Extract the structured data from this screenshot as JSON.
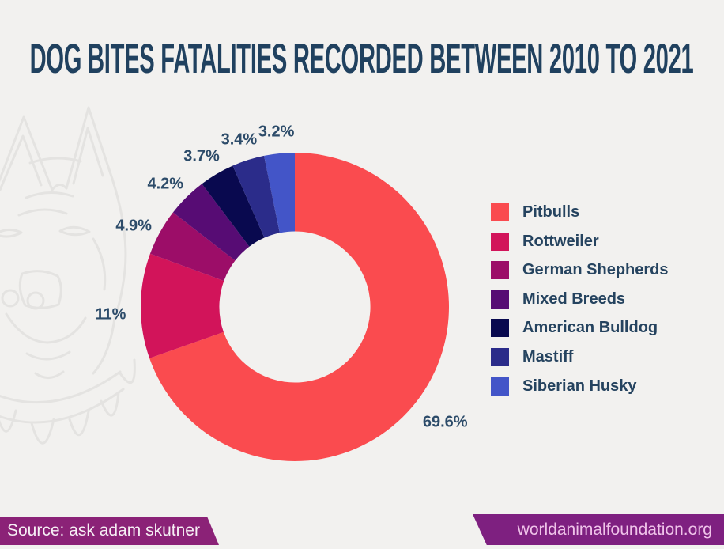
{
  "page": {
    "background_color": "#F2F1EF",
    "title": "DOG BITES FATALITIES RECORDED BETWEEN 2010 TO 2021",
    "title_color": "#20415F"
  },
  "chart_data": {
    "type": "pie",
    "style": "donut",
    "title": "DOG BITES FATALITIES RECORDED BETWEEN 2010 TO 2021",
    "start_angle_deg": 0,
    "direction": "clockwise",
    "donut_hole_ratio": 0.49,
    "legend_position": "right",
    "grid": false,
    "value_label_color": "#2C4B69",
    "legend_text_color": "#25435F",
    "series": [
      {
        "label": "Pitbulls",
        "value": 69.6,
        "value_label": "69.6%",
        "color": "#FA4B4F"
      },
      {
        "label": "Rottweiler",
        "value": 11,
        "value_label": "11%",
        "color": "#D2145A"
      },
      {
        "label": "German Shepherds",
        "value": 4.9,
        "value_label": "4.9%",
        "color": "#9C0D68"
      },
      {
        "label": "Mixed Breeds",
        "value": 4.2,
        "value_label": "4.2%",
        "color": "#570C74"
      },
      {
        "label": "American Bulldog",
        "value": 3.7,
        "value_label": "3.7%",
        "color": "#09094F"
      },
      {
        "label": "Mastiff",
        "value": 3.4,
        "value_label": "3.4%",
        "color": "#2B2C8A"
      },
      {
        "label": "Siberian Husky",
        "value": 3.2,
        "value_label": "3.2%",
        "color": "#4355C8"
      }
    ]
  },
  "footer": {
    "source_label": "Source: ask adam skutner",
    "source_bg": "#8B2277",
    "source_text_color": "#F6EFF4",
    "website_label": "worldanimalfoundation.org",
    "website_bg": "#7E2080",
    "website_text_color": "#EFC3E9"
  },
  "watermark": {
    "description": "pitbull head line illustration with spiked collar",
    "color": "#E4E3E1"
  }
}
